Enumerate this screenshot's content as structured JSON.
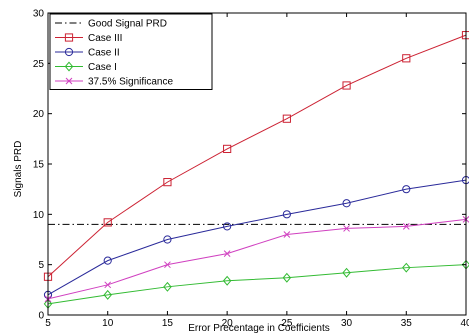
{
  "chart_data": {
    "type": "line",
    "title": "",
    "xlabel": "Error Precentage in Coefficients",
    "ylabel": "Signals PRD",
    "xlim": [
      5,
      40
    ],
    "ylim": [
      0,
      30
    ],
    "xticks": [
      5,
      10,
      15,
      20,
      25,
      30,
      35,
      40
    ],
    "yticks": [
      0,
      5,
      10,
      15,
      20,
      25,
      30
    ],
    "grid": false,
    "legend_position": "top-left",
    "x": [
      5,
      10,
      15,
      20,
      25,
      30,
      35,
      40
    ],
    "series": [
      {
        "name": "Good Signal PRD",
        "style": "dash-dot",
        "marker": "none",
        "color": "#000000",
        "values": [
          9,
          9,
          9,
          9,
          9,
          9,
          9,
          9
        ]
      },
      {
        "name": "Case III",
        "style": "solid",
        "marker": "square",
        "color": "#cc2233",
        "values": [
          3.8,
          9.2,
          13.2,
          16.5,
          19.5,
          22.8,
          25.5,
          27.8
        ]
      },
      {
        "name": "Case II",
        "style": "solid",
        "marker": "circle",
        "color": "#2a2a9a",
        "values": [
          2.0,
          5.4,
          7.5,
          8.8,
          10.0,
          11.1,
          12.5,
          13.4
        ]
      },
      {
        "name": "Case I",
        "style": "solid",
        "marker": "diamond",
        "color": "#33bb33",
        "values": [
          1.1,
          2.0,
          2.8,
          3.4,
          3.7,
          4.2,
          4.7,
          5.0
        ]
      },
      {
        "name": "37.5% Significance",
        "style": "solid",
        "marker": "x",
        "color": "#d040c0",
        "values": [
          1.6,
          3.0,
          5.0,
          6.1,
          8.0,
          8.6,
          8.8,
          9.5
        ]
      }
    ]
  }
}
